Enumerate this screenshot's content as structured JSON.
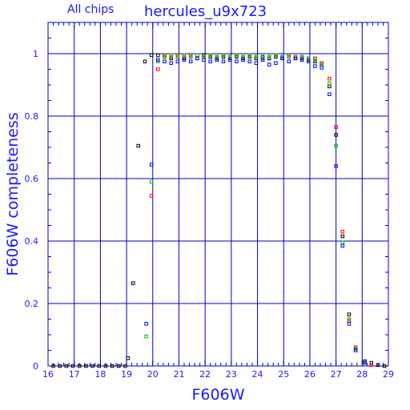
{
  "header": {
    "chip_label": "All chips",
    "title": "hercules_u9x723"
  },
  "chart_data": {
    "type": "scatter",
    "xlabel": "F606W",
    "ylabel": "F606W completeness",
    "xlim": [
      16,
      29
    ],
    "ylim": [
      0,
      1.1
    ],
    "grid": true,
    "x_ticks": [
      "16",
      "17",
      "18",
      "19",
      "20",
      "21",
      "22",
      "23",
      "24",
      "25",
      "26",
      "27",
      "28",
      "29"
    ],
    "y_ticks": [
      "0",
      "0.2",
      "0.4",
      "0.6",
      "0.8",
      "1"
    ],
    "colors": {
      "axes": "#0000cc",
      "text": "#1a1aff"
    },
    "series": [
      {
        "color": "#000000",
        "x": [
          16.2,
          16.45,
          16.7,
          16.95,
          17.2,
          17.45,
          17.7,
          17.95,
          18.2,
          18.45,
          18.7,
          18.95,
          19.05,
          19.25,
          19.45,
          19.7,
          19.95,
          20.2,
          20.45,
          20.7,
          20.95,
          21.2,
          21.45,
          21.7,
          21.95,
          22.2,
          22.45,
          22.7,
          22.95,
          23.2,
          23.45,
          23.7,
          23.95,
          24.2,
          24.45,
          24.7,
          24.95,
          25.2,
          25.45,
          25.7,
          25.95,
          26.2,
          26.45,
          26.75,
          27.0,
          27.25,
          27.5,
          27.75,
          28.1,
          28.35,
          28.6,
          28.85
        ],
        "y": [
          0,
          0,
          0,
          0,
          0,
          0,
          0,
          0,
          0,
          0,
          0,
          0,
          0.025,
          0.265,
          0.705,
          0.975,
          0.995,
          0.995,
          0.99,
          0.985,
          0.99,
          0.985,
          0.99,
          0.985,
          0.995,
          0.99,
          0.985,
          0.99,
          0.985,
          0.99,
          0.985,
          0.99,
          0.985,
          0.99,
          0.985,
          0.99,
          0.985,
          0.99,
          0.985,
          0.985,
          0.98,
          0.975,
          0.965,
          0.895,
          0.74,
          0.415,
          0.165,
          0.055,
          0.015,
          0.01,
          0.003,
          0
        ]
      },
      {
        "color": "#ff0000",
        "x": [
          19.95,
          20.2,
          20.45,
          20.7,
          20.95,
          21.2,
          21.45,
          21.7,
          21.95,
          22.2,
          22.45,
          22.7,
          22.95,
          23.2,
          23.45,
          23.7,
          23.95,
          24.2,
          24.45,
          24.7,
          24.95,
          25.2,
          25.45,
          25.7,
          25.95,
          26.2,
          26.45,
          26.75,
          27.0,
          27.25,
          27.5,
          27.75,
          28.1,
          28.35
        ],
        "y": [
          0.545,
          0.95,
          0.995,
          0.99,
          0.995,
          0.99,
          0.995,
          0.995,
          0.99,
          0.995,
          0.99,
          0.995,
          0.99,
          0.995,
          0.99,
          0.995,
          0.99,
          0.985,
          0.99,
          0.995,
          0.99,
          0.995,
          0.99,
          0.99,
          0.985,
          0.985,
          0.97,
          0.92,
          0.765,
          0.43,
          0.145,
          0.06,
          0.01,
          0.003
        ]
      },
      {
        "color": "#00bb00",
        "x": [
          19.75,
          19.95,
          20.2,
          20.45,
          20.7,
          20.95,
          21.2,
          21.45,
          21.7,
          21.95,
          22.2,
          22.45,
          22.7,
          22.95,
          23.2,
          23.45,
          23.7,
          23.95,
          24.2,
          24.45,
          24.7,
          24.95,
          25.2,
          25.45,
          25.7,
          25.95,
          26.2,
          26.45,
          26.75,
          27.0,
          27.25,
          27.5,
          27.75,
          28.1
        ],
        "y": [
          0.095,
          0.59,
          0.975,
          0.99,
          0.995,
          0.99,
          0.995,
          0.99,
          0.995,
          0.99,
          0.995,
          0.99,
          0.995,
          0.99,
          0.995,
          0.99,
          0.995,
          0.99,
          0.985,
          0.99,
          0.995,
          0.99,
          0.99,
          0.985,
          0.99,
          0.985,
          0.98,
          0.965,
          0.905,
          0.705,
          0.395,
          0.15,
          0.055,
          0.01
        ]
      },
      {
        "color": "#0000ff",
        "x": [
          19.75,
          19.95,
          20.2,
          20.45,
          20.7,
          20.95,
          21.2,
          21.45,
          21.7,
          21.95,
          22.2,
          22.45,
          22.7,
          22.95,
          23.2,
          23.45,
          23.7,
          23.95,
          24.2,
          24.45,
          24.7,
          24.95,
          25.2,
          25.45,
          25.7,
          25.95,
          26.2,
          26.45,
          26.75,
          27.0,
          27.25,
          27.5,
          27.75,
          28.1
        ],
        "y": [
          0.135,
          0.645,
          0.98,
          0.975,
          0.97,
          0.975,
          0.98,
          0.975,
          0.985,
          0.98,
          0.975,
          0.98,
          0.975,
          0.98,
          0.975,
          0.98,
          0.975,
          0.97,
          0.98,
          0.965,
          0.97,
          0.985,
          0.975,
          0.985,
          0.98,
          0.975,
          0.96,
          0.955,
          0.87,
          0.64,
          0.385,
          0.135,
          0.05,
          0.01
        ]
      }
    ]
  }
}
